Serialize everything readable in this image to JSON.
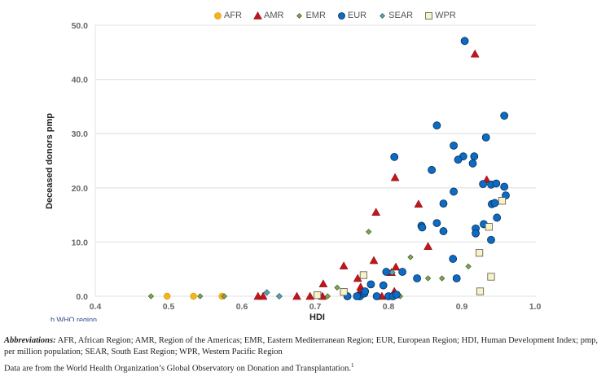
{
  "chart_data": {
    "type": "scatter",
    "title": "",
    "xlabel": "HDI",
    "ylabel": "Deceased donors pmp",
    "xlim": [
      0.4,
      1.0
    ],
    "ylim": [
      0,
      50
    ],
    "xticks": [
      "0.4",
      "0.5",
      "0.6",
      "0.7",
      "0.8",
      "0.9",
      "1.0"
    ],
    "yticks": [
      "0.0",
      "10.0",
      "20.0",
      "30.0",
      "40.0",
      "50.0"
    ],
    "grid": "horizontal",
    "legend_position": "top",
    "series": [
      {
        "name": "AFR",
        "marker": "circle",
        "color": "#f2b51c",
        "points": [
          [
            0.498,
            0
          ],
          [
            0.534,
            0
          ],
          [
            0.573,
            0
          ]
        ]
      },
      {
        "name": "AMR",
        "marker": "triangle",
        "color": "#c0161c",
        "points": [
          [
            0.918,
            44.7
          ],
          [
            0.809,
            21.9
          ],
          [
            0.934,
            21.5
          ],
          [
            0.841,
            17.0
          ],
          [
            0.783,
            15.5
          ],
          [
            0.854,
            9.2
          ],
          [
            0.78,
            6.6
          ],
          [
            0.739,
            5.6
          ],
          [
            0.81,
            5.4
          ],
          [
            0.804,
            4.4
          ],
          [
            0.758,
            3.3
          ],
          [
            0.711,
            2.3
          ],
          [
            0.762,
            1.7
          ],
          [
            0.761,
            0.9
          ],
          [
            0.808,
            0.9
          ],
          [
            0.622,
            0
          ],
          [
            0.629,
            0
          ],
          [
            0.675,
            0
          ],
          [
            0.693,
            0
          ],
          [
            0.71,
            0
          ],
          [
            0.791,
            0
          ]
        ]
      },
      {
        "name": "EMR",
        "marker": "diamond",
        "color": "#7aa84a",
        "points": [
          [
            0.476,
            0
          ],
          [
            0.543,
            0
          ],
          [
            0.576,
            0
          ],
          [
            0.717,
            0
          ],
          [
            0.816,
            0
          ],
          [
            0.773,
            11.9
          ],
          [
            0.83,
            7.2
          ],
          [
            0.73,
            1.6
          ],
          [
            0.854,
            3.3
          ],
          [
            0.873,
            3.3
          ],
          [
            0.909,
            5.5
          ]
        ]
      },
      {
        "name": "EUR",
        "marker": "circle",
        "color": "#0a6cc4",
        "points": [
          [
            0.904,
            47.1
          ],
          [
            0.958,
            33.3
          ],
          [
            0.866,
            31.5
          ],
          [
            0.933,
            29.3
          ],
          [
            0.808,
            25.7
          ],
          [
            0.889,
            27.8
          ],
          [
            0.902,
            25.8
          ],
          [
            0.917,
            25.8
          ],
          [
            0.895,
            25.2
          ],
          [
            0.915,
            24.5
          ],
          [
            0.859,
            23.3
          ],
          [
            0.889,
            19.3
          ],
          [
            0.929,
            20.7
          ],
          [
            0.94,
            20.6
          ],
          [
            0.947,
            20.8
          ],
          [
            0.958,
            20.2
          ],
          [
            0.96,
            18.6
          ],
          [
            0.875,
            17.1
          ],
          [
            0.941,
            17.0
          ],
          [
            0.945,
            17.2
          ],
          [
            0.866,
            13.5
          ],
          [
            0.845,
            13.0
          ],
          [
            0.846,
            12.7
          ],
          [
            0.93,
            13.3
          ],
          [
            0.919,
            12.5
          ],
          [
            0.919,
            11.6
          ],
          [
            0.948,
            14.5
          ],
          [
            0.875,
            12.0
          ],
          [
            0.94,
            10.4
          ],
          [
            0.888,
            6.9
          ],
          [
            0.893,
            3.3
          ],
          [
            0.839,
            3.3
          ],
          [
            0.819,
            4.5
          ],
          [
            0.797,
            4.5
          ],
          [
            0.776,
            2.2
          ],
          [
            0.793,
            2.0
          ],
          [
            0.744,
            0
          ],
          [
            0.761,
            0
          ],
          [
            0.767,
            0.5
          ],
          [
            0.768,
            0.9
          ],
          [
            0.784,
            0
          ],
          [
            0.8,
            0
          ],
          [
            0.806,
            0
          ],
          [
            0.811,
            0.3
          ],
          [
            0.757,
            0
          ]
        ]
      },
      {
        "name": "SEAR",
        "marker": "diamond",
        "color": "#4aa6c8",
        "points": [
          [
            0.634,
            0.7
          ],
          [
            0.651,
            0
          ],
          [
            0.805,
            4.4
          ]
        ]
      },
      {
        "name": "WPR",
        "marker": "square",
        "color": "#f7f3c6",
        "points": [
          [
            0.703,
            0.2
          ],
          [
            0.739,
            0.8
          ],
          [
            0.766,
            3.9
          ],
          [
            0.925,
            0.9
          ],
          [
            0.924,
            8.0
          ],
          [
            0.937,
            12.8
          ],
          [
            0.955,
            17.6
          ],
          [
            0.94,
            3.6
          ]
        ]
      }
    ]
  },
  "partial_label": "b WHO region",
  "caption": {
    "abbreviations_title": "Abbreviations:",
    "abbreviations_text": " AFR, African Region; AMR, Region of the Americas; EMR, Eastern Mediterranean Region; EUR, European Region; HDI, Human Development Index; pmp, per million population; SEAR, South East Region; WPR, Western Pacific Region",
    "source": "Data are from the World Health Organization’s Global Observatory on Donation and Transplantation.",
    "source_ref": "1"
  }
}
